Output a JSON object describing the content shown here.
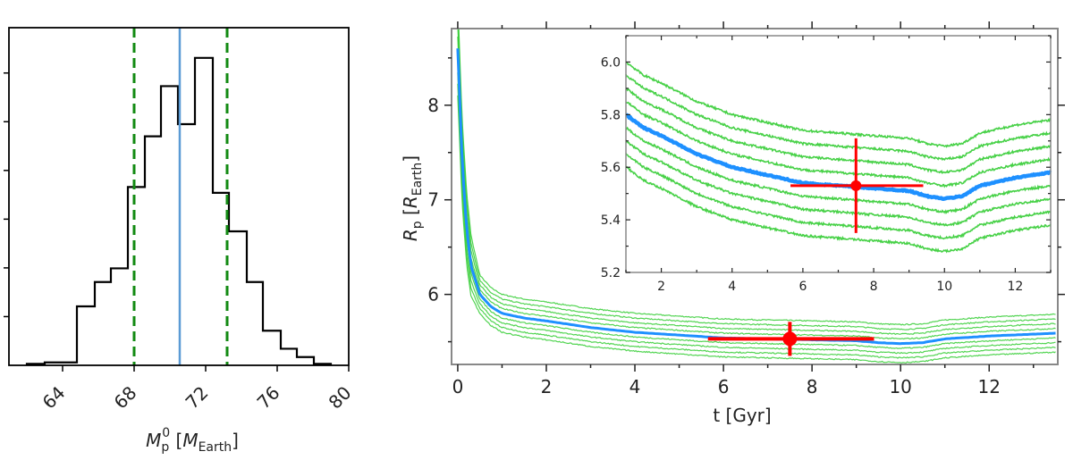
{
  "chart_data": [
    {
      "type": "bar",
      "subtype": "histogram-step",
      "xlabel": "M_p^0 [M_Earth]",
      "xlabel_parts": {
        "main": "M",
        "sub": "p",
        "sup": "0",
        "unit_open": " [",
        "unit": "M",
        "unit_sub": "Earth",
        "unit_close": "]"
      },
      "xlim": [
        61,
        80
      ],
      "ylim": [
        0,
        6.93
      ],
      "xticks": [
        "64",
        "68",
        "72",
        "76",
        "80"
      ],
      "yticks_count": 6,
      "bin_edges": [
        62.0,
        63.0,
        63.9,
        64.8,
        65.8,
        66.7,
        67.65,
        68.6,
        69.5,
        70.45,
        71.4,
        72.4,
        73.3,
        74.3,
        75.2,
        76.2,
        77.1,
        78.05,
        79.0
      ],
      "counts": [
        0.03,
        0.06,
        0.06,
        1.21,
        1.71,
        1.99,
        3.66,
        4.7,
        5.73,
        4.95,
        6.31,
        3.54,
        2.75,
        1.71,
        0.71,
        0.34,
        0.17,
        0.03
      ],
      "median_line": 70.55,
      "interval_lines": [
        68.0,
        73.2
      ],
      "colors": {
        "hist": "#000000",
        "median": "#5b9bd5",
        "interval": "#128a12"
      }
    },
    {
      "type": "line",
      "xlabel": "t [Gyr]",
      "ylabel_parts": {
        "main": "R",
        "sub": "p",
        "unit_open": " [",
        "unit": "R",
        "unit_sub": "Earth",
        "unit_close": "]"
      },
      "xlim": [
        -0.14,
        13.55
      ],
      "ylim": [
        5.26,
        8.81
      ],
      "xticks": [
        "0",
        "2",
        "4",
        "6",
        "8",
        "10",
        "12"
      ],
      "yticks": [
        "6",
        "7",
        "8"
      ],
      "t": [
        0,
        0.05,
        0.1,
        0.2,
        0.3,
        0.5,
        0.75,
        1,
        1.5,
        2,
        3,
        4,
        5,
        6,
        7,
        8,
        9,
        9.5,
        10,
        10.5,
        11,
        12,
        13,
        13.5
      ],
      "median": [
        8.6,
        8.0,
        7.4,
        6.7,
        6.3,
        6.0,
        5.87,
        5.8,
        5.75,
        5.72,
        5.65,
        5.6,
        5.57,
        5.54,
        5.53,
        5.52,
        5.51,
        5.49,
        5.48,
        5.49,
        5.53,
        5.56,
        5.58,
        5.59
      ],
      "envelope_offsets": [
        0.2,
        0.15,
        0.1,
        0.05,
        -0.05,
        -0.1,
        -0.15,
        -0.2
      ],
      "observation": {
        "t": 7.5,
        "R": 5.53,
        "t_err": [
          5.65,
          9.4
        ],
        "R_err": [
          5.35,
          5.71
        ]
      },
      "colors": {
        "median": "#1e90ff",
        "envelope": "#33cc33",
        "observation": "#ff0000"
      },
      "inset": {
        "xlim": [
          1,
          13
        ],
        "ylim": [
          5.2,
          6.1
        ],
        "xticks": [
          "2",
          "4",
          "6",
          "8",
          "10",
          "12"
        ],
        "yticks": [
          "5.2",
          "5.4",
          "5.6",
          "5.8",
          "6.0"
        ]
      }
    }
  ]
}
